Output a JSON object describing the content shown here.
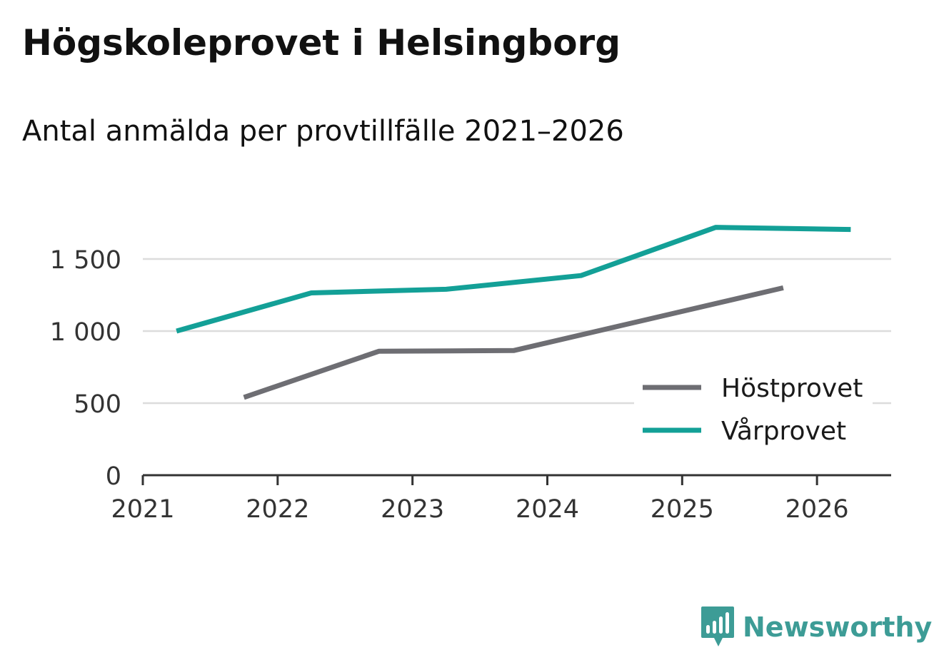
{
  "header": {
    "title": "Högskoleprovet i Helsingborg",
    "subtitle": "Antal anmälda per provtillfälle 2021–2026"
  },
  "brand": {
    "name": "Newsworthy",
    "color": "#3d9c96"
  },
  "chart_data": {
    "type": "line",
    "title": "Högskoleprovet i Helsingborg",
    "subtitle": "Antal anmälda per provtillfälle 2021–2026",
    "xlabel": "",
    "ylabel": "",
    "x_ticks": [
      "2021",
      "2022",
      "2023",
      "2024",
      "2025",
      "2026"
    ],
    "xlim": [
      2021,
      2026.55
    ],
    "y_ticks": [
      {
        "value": 0,
        "label": "0"
      },
      {
        "value": 500,
        "label": "500"
      },
      {
        "value": 1000,
        "label": "1 000"
      },
      {
        "value": 1500,
        "label": "1 500"
      }
    ],
    "ylim": [
      0,
      1500
    ],
    "grid": true,
    "legend_position": "bottom-right",
    "series": [
      {
        "name": "Höstprovet",
        "color": "#6e6e73",
        "points": [
          {
            "x": 2021.75,
            "y": 540
          },
          {
            "x": 2022.75,
            "y": 860
          },
          {
            "x": 2023.75,
            "y": 865
          },
          {
            "x": 2025.75,
            "y": 1300
          }
        ]
      },
      {
        "name": "Vårprovet",
        "color": "#13a097",
        "points": [
          {
            "x": 2021.25,
            "y": 1000
          },
          {
            "x": 2022.25,
            "y": 1265
          },
          {
            "x": 2023.25,
            "y": 1290
          },
          {
            "x": 2024.25,
            "y": 1385
          },
          {
            "x": 2025.25,
            "y": 1720
          },
          {
            "x": 2026.25,
            "y": 1705
          }
        ]
      }
    ]
  }
}
